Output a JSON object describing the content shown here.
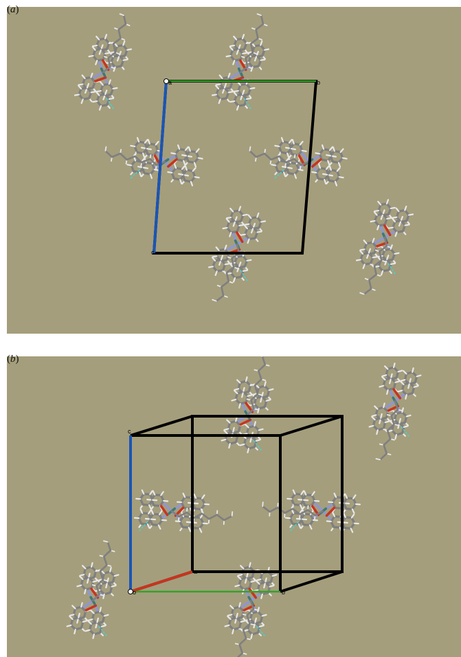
{
  "panels": [
    {
      "id": "a",
      "label_open": "(",
      "label_letter": "a",
      "label_close": ")",
      "axes": {
        "a": "a",
        "b": "b",
        "c": "c"
      }
    },
    {
      "id": "b",
      "label_open": "(",
      "label_letter": "b",
      "label_close": ")",
      "axes": {
        "o": "o",
        "a": "a",
        "b": "b",
        "c": "c"
      }
    }
  ],
  "colors": {
    "background": "#a49e7c",
    "carbon": "#7f7f7f",
    "hydrogen": "#e8e8e8",
    "nitrogen": "#8f95d8",
    "oxygen": "#c8341f",
    "metal": "#3c7a74",
    "hbond": "#3fd6d6",
    "cell_edge": "#000000",
    "axis_a": "#c8341f",
    "axis_b": "#36a12a",
    "axis_c": "#1a55b6"
  }
}
